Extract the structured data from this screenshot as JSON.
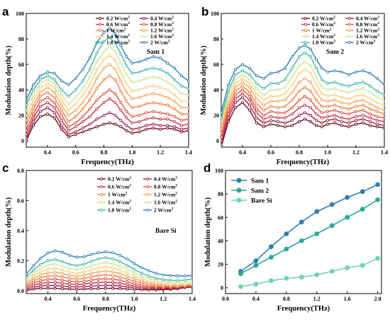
{
  "figure": {
    "panel_letters": [
      "a",
      "b",
      "c",
      "d"
    ],
    "intensity_legend": [
      {
        "label": "0.2 W/cm²",
        "color": "#6b0f1e"
      },
      {
        "label": "0.4 W/cm²",
        "color": "#a0204b"
      },
      {
        "label": "0.6 W/cm²",
        "color": "#c8324a"
      },
      {
        "label": "0.8 W/cm²",
        "color": "#e8513d"
      },
      {
        "label": "1    W/cm²",
        "color": "#f07f43"
      },
      {
        "label": "1.2 W/cm²",
        "color": "#f4a35e"
      },
      {
        "label": "1.4 W/cm²",
        "color": "#f6ce7a"
      },
      {
        "label": "1.6 W/cm²",
        "color": "#cfe39a"
      },
      {
        "label": "1.8 W/cm²",
        "color": "#3fb6a3"
      },
      {
        "label": "2    W/cm²",
        "color": "#2f7fb6"
      }
    ]
  },
  "chart_data": [
    {
      "panel": "a",
      "type": "line",
      "annotation": "Sam 1",
      "xlabel": "Frequency(THz)",
      "ylabel": "Modulation depth(%)",
      "xlim": [
        0.25,
        1.4
      ],
      "ylim": [
        -5,
        100
      ],
      "xticks": [
        "0.4",
        "0.6",
        "0.8",
        "1.0",
        "1.2",
        "1.4"
      ],
      "yticks": [
        "0",
        "20",
        "40",
        "60",
        "80",
        "100"
      ],
      "x": [
        0.25,
        0.3,
        0.35,
        0.4,
        0.45,
        0.5,
        0.55,
        0.6,
        0.65,
        0.7,
        0.75,
        0.8,
        0.84,
        0.88,
        0.92,
        0.96,
        1.0,
        1.05,
        1.1,
        1.15,
        1.2,
        1.25,
        1.3,
        1.35,
        1.4
      ],
      "series": [
        {
          "name": "0.2 W/cm²",
          "values": [
            0,
            12,
            19,
            21,
            18,
            9,
            3,
            5,
            7,
            9,
            11,
            13,
            14,
            13,
            11,
            8,
            6,
            7,
            9,
            10,
            9,
            10,
            9,
            7,
            8
          ]
        },
        {
          "name": "0.4 W/cm²",
          "values": [
            2,
            15,
            23,
            26,
            22,
            12,
            5,
            7,
            10,
            13,
            17,
            20,
            22,
            20,
            16,
            12,
            9,
            10,
            12,
            13,
            12,
            12,
            11,
            9,
            10
          ]
        },
        {
          "name": "0.6 W/cm²",
          "values": [
            5,
            18,
            27,
            30,
            26,
            16,
            8,
            11,
            15,
            19,
            25,
            30,
            33,
            30,
            24,
            18,
            14,
            15,
            17,
            18,
            17,
            17,
            15,
            12,
            13
          ]
        },
        {
          "name": "0.8 W/cm²",
          "values": [
            8,
            21,
            31,
            34,
            30,
            20,
            11,
            14,
            19,
            25,
            32,
            37,
            40,
            37,
            30,
            23,
            19,
            20,
            22,
            23,
            22,
            21,
            19,
            16,
            17
          ]
        },
        {
          "name": "1    W/cm²",
          "values": [
            12,
            25,
            35,
            38,
            34,
            24,
            15,
            19,
            25,
            32,
            41,
            48,
            51,
            48,
            39,
            31,
            26,
            27,
            29,
            30,
            29,
            28,
            25,
            21,
            21
          ]
        },
        {
          "name": "1.2 W/cm²",
          "values": [
            16,
            28,
            38,
            42,
            38,
            28,
            20,
            24,
            30,
            38,
            49,
            57,
            60,
            56,
            47,
            38,
            33,
            34,
            36,
            37,
            36,
            34,
            31,
            26,
            26
          ]
        },
        {
          "name": "1.4 W/cm²",
          "values": [
            20,
            32,
            42,
            45,
            42,
            32,
            24,
            29,
            36,
            44,
            56,
            64,
            67,
            63,
            54,
            45,
            39,
            40,
            42,
            43,
            42,
            40,
            36,
            31,
            31
          ]
        },
        {
          "name": "1.6 W/cm²",
          "values": [
            24,
            36,
            45,
            48,
            45,
            36,
            29,
            34,
            41,
            50,
            62,
            70,
            74,
            70,
            61,
            52,
            46,
            47,
            49,
            50,
            49,
            46,
            42,
            37,
            36
          ]
        },
        {
          "name": "1.8 W/cm²",
          "values": [
            28,
            40,
            48,
            51,
            48,
            40,
            35,
            40,
            47,
            56,
            69,
            78,
            81,
            77,
            68,
            59,
            53,
            54,
            56,
            57,
            56,
            53,
            48,
            43,
            41
          ]
        },
        {
          "name": "2    W/cm²",
          "values": [
            32,
            44,
            51,
            54,
            53,
            47,
            44,
            49,
            56,
            65,
            77,
            85,
            88,
            84,
            75,
            66,
            61,
            62,
            64,
            66,
            65,
            61,
            57,
            51,
            47
          ]
        }
      ]
    },
    {
      "panel": "b",
      "type": "line",
      "annotation": "Sam 2",
      "xlabel": "Frequency(THz)",
      "ylabel": "Modulation depth(%)",
      "xlim": [
        0.25,
        1.4
      ],
      "ylim": [
        -5,
        100
      ],
      "xticks": [
        "0.4",
        "0.6",
        "0.8",
        "1.0",
        "1.2",
        "1.4"
      ],
      "yticks": [
        "0",
        "20",
        "40",
        "60",
        "80",
        "100"
      ],
      "x": [
        0.25,
        0.3,
        0.35,
        0.4,
        0.45,
        0.5,
        0.55,
        0.6,
        0.65,
        0.7,
        0.75,
        0.8,
        0.84,
        0.88,
        0.92,
        0.96,
        1.0,
        1.05,
        1.1,
        1.15,
        1.2,
        1.25,
        1.3,
        1.35,
        1.4
      ],
      "series": [
        {
          "name": "0.2 W/cm²",
          "values": [
            -5,
            15,
            26,
            30,
            24,
            14,
            11,
            13,
            12,
            11,
            12,
            15,
            17,
            15,
            12,
            11,
            13,
            14,
            12,
            11,
            13,
            14,
            12,
            11,
            10
          ]
        },
        {
          "name": "0.4 W/cm²",
          "values": [
            -3,
            18,
            30,
            34,
            28,
            18,
            14,
            16,
            15,
            14,
            16,
            20,
            22,
            20,
            16,
            14,
            16,
            17,
            15,
            14,
            16,
            17,
            15,
            13,
            12
          ]
        },
        {
          "name": "0.6 W/cm²",
          "values": [
            0,
            21,
            33,
            37,
            32,
            22,
            17,
            19,
            18,
            18,
            21,
            26,
            28,
            26,
            21,
            18,
            19,
            20,
            18,
            17,
            19,
            20,
            18,
            16,
            15
          ]
        },
        {
          "name": "0.8 W/cm²",
          "values": [
            3,
            24,
            36,
            40,
            35,
            25,
            20,
            23,
            22,
            22,
            26,
            32,
            35,
            32,
            26,
            22,
            23,
            24,
            22,
            21,
            23,
            24,
            21,
            19,
            18
          ]
        },
        {
          "name": "1    W/cm²",
          "values": [
            6,
            27,
            39,
            43,
            38,
            29,
            24,
            27,
            26,
            27,
            32,
            39,
            42,
            39,
            32,
            27,
            27,
            28,
            26,
            25,
            27,
            28,
            25,
            23,
            21
          ]
        },
        {
          "name": "1.2 W/cm²",
          "values": [
            9,
            30,
            42,
            46,
            42,
            33,
            28,
            31,
            31,
            32,
            38,
            46,
            49,
            46,
            38,
            32,
            31,
            32,
            30,
            29,
            31,
            32,
            29,
            26,
            24
          ]
        },
        {
          "name": "1.4 W/cm²",
          "values": [
            12,
            33,
            45,
            49,
            45,
            37,
            32,
            35,
            35,
            37,
            44,
            53,
            56,
            53,
            44,
            37,
            35,
            36,
            34,
            33,
            35,
            36,
            33,
            30,
            28
          ]
        },
        {
          "name": "1.6 W/cm²",
          "values": [
            15,
            36,
            48,
            52,
            48,
            41,
            36,
            40,
            40,
            42,
            50,
            59,
            62,
            59,
            50,
            42,
            40,
            41,
            39,
            38,
            40,
            41,
            38,
            34,
            31
          ]
        },
        {
          "name": "1.8 W/cm²",
          "values": [
            18,
            39,
            52,
            55,
            52,
            45,
            41,
            45,
            45,
            48,
            57,
            66,
            69,
            66,
            57,
            48,
            45,
            46,
            44,
            43,
            45,
            46,
            43,
            39,
            36
          ]
        },
        {
          "name": "2    W/cm²",
          "values": [
            22,
            44,
            56,
            60,
            57,
            51,
            49,
            53,
            54,
            57,
            66,
            73,
            75,
            72,
            64,
            57,
            54,
            55,
            54,
            52,
            54,
            55,
            53,
            49,
            44
          ]
        }
      ]
    },
    {
      "panel": "c",
      "type": "line",
      "annotation": "Bare Si",
      "xlabel": "Frequency(THz)",
      "ylabel": "Modulation depth(%)",
      "xlim": [
        0.25,
        1.4
      ],
      "ylim": [
        -0.02,
        0.8
      ],
      "xticks": [
        "0.4",
        "0.6",
        "0.8",
        "1.0",
        "1.2",
        "1.4"
      ],
      "yticks": [
        "0.0",
        "0.2",
        "0.4",
        "0.6",
        "0.8"
      ],
      "x": [
        0.25,
        0.3,
        0.35,
        0.4,
        0.45,
        0.5,
        0.55,
        0.6,
        0.65,
        0.7,
        0.75,
        0.8,
        0.85,
        0.9,
        0.95,
        1.0,
        1.05,
        1.1,
        1.15,
        1.2,
        1.25,
        1.3,
        1.35,
        1.4
      ],
      "series": [
        {
          "name": "0.2 W/cm²",
          "values": [
            0.0,
            0.01,
            0.015,
            0.015,
            0.015,
            0.012,
            0.01,
            0.008,
            0.01,
            0.012,
            0.014,
            0.015,
            0.015,
            0.013,
            0.01,
            0.008,
            0.006,
            0.005,
            0.005,
            0.006,
            0.008,
            0.012,
            0.02,
            0.025
          ]
        },
        {
          "name": "0.4 W/cm²",
          "values": [
            0.01,
            0.022,
            0.03,
            0.034,
            0.034,
            0.03,
            0.026,
            0.024,
            0.026,
            0.03,
            0.033,
            0.035,
            0.034,
            0.03,
            0.025,
            0.02,
            0.016,
            0.013,
            0.012,
            0.012,
            0.014,
            0.018,
            0.024,
            0.028
          ]
        },
        {
          "name": "0.6 W/cm²",
          "values": [
            0.02,
            0.036,
            0.048,
            0.054,
            0.054,
            0.049,
            0.043,
            0.04,
            0.043,
            0.049,
            0.054,
            0.056,
            0.054,
            0.048,
            0.04,
            0.032,
            0.026,
            0.021,
            0.018,
            0.017,
            0.018,
            0.021,
            0.026,
            0.03
          ]
        },
        {
          "name": "0.8 W/cm²",
          "values": [
            0.03,
            0.05,
            0.066,
            0.075,
            0.076,
            0.069,
            0.061,
            0.057,
            0.061,
            0.069,
            0.076,
            0.079,
            0.076,
            0.068,
            0.057,
            0.046,
            0.037,
            0.03,
            0.025,
            0.022,
            0.022,
            0.024,
            0.028,
            0.032
          ]
        },
        {
          "name": "1    W/cm²",
          "values": [
            0.04,
            0.065,
            0.085,
            0.097,
            0.099,
            0.091,
            0.081,
            0.076,
            0.081,
            0.091,
            0.1,
            0.104,
            0.1,
            0.09,
            0.076,
            0.062,
            0.05,
            0.041,
            0.034,
            0.029,
            0.027,
            0.028,
            0.031,
            0.035
          ]
        },
        {
          "name": "1.2 W/cm²",
          "values": [
            0.05,
            0.08,
            0.104,
            0.12,
            0.123,
            0.114,
            0.102,
            0.096,
            0.102,
            0.114,
            0.125,
            0.13,
            0.125,
            0.113,
            0.096,
            0.079,
            0.064,
            0.052,
            0.043,
            0.037,
            0.034,
            0.034,
            0.036,
            0.04
          ]
        },
        {
          "name": "1.4 W/cm²",
          "values": [
            0.06,
            0.096,
            0.125,
            0.144,
            0.148,
            0.138,
            0.124,
            0.117,
            0.124,
            0.138,
            0.151,
            0.157,
            0.151,
            0.137,
            0.117,
            0.097,
            0.079,
            0.065,
            0.054,
            0.047,
            0.043,
            0.042,
            0.044,
            0.048
          ]
        },
        {
          "name": "1.6 W/cm²",
          "values": [
            0.075,
            0.115,
            0.148,
            0.17,
            0.175,
            0.164,
            0.148,
            0.14,
            0.148,
            0.164,
            0.179,
            0.186,
            0.179,
            0.163,
            0.14,
            0.117,
            0.096,
            0.08,
            0.067,
            0.059,
            0.054,
            0.053,
            0.055,
            0.06
          ]
        },
        {
          "name": "1.8 W/cm²",
          "values": [
            0.09,
            0.136,
            0.174,
            0.2,
            0.206,
            0.193,
            0.175,
            0.166,
            0.175,
            0.194,
            0.211,
            0.219,
            0.211,
            0.193,
            0.167,
            0.14,
            0.116,
            0.097,
            0.082,
            0.073,
            0.068,
            0.067,
            0.07,
            0.076
          ]
        },
        {
          "name": "2    W/cm²",
          "values": [
            0.11,
            0.165,
            0.215,
            0.25,
            0.265,
            0.255,
            0.235,
            0.222,
            0.225,
            0.24,
            0.252,
            0.258,
            0.252,
            0.235,
            0.21,
            0.18,
            0.153,
            0.132,
            0.115,
            0.105,
            0.1,
            0.098,
            0.098,
            0.1
          ]
        }
      ]
    },
    {
      "panel": "d",
      "type": "line",
      "xlabel": "Frequency(THz)",
      "ylabel": "Modulation depth(%)",
      "xlim": [
        0.0,
        2.05
      ],
      "ylim": [
        -5,
        100
      ],
      "xticks": [
        "0.0",
        "0.4",
        "0.8",
        "1.2",
        "1.6",
        "2.0"
      ],
      "yticks": [
        "0",
        "20",
        "40",
        "60",
        "80",
        "100"
      ],
      "x": [
        0.2,
        0.4,
        0.6,
        0.8,
        1.0,
        1.2,
        1.4,
        1.6,
        1.8,
        2.0
      ],
      "legend": "top-left",
      "series": [
        {
          "name": "Sam 1",
          "color": "#2f7fb6",
          "values": [
            14,
            23,
            35,
            46,
            56,
            65,
            71,
            77,
            82,
            88
          ]
        },
        {
          "name": "Sam 2",
          "color": "#2aa89a",
          "values": [
            12,
            19,
            26,
            33,
            40,
            46,
            53,
            60,
            67,
            75
          ]
        },
        {
          "name": "Bare Si",
          "color": "#6fd3b4",
          "values": [
            1,
            3,
            6,
            8,
            9,
            11,
            14,
            17,
            19,
            25
          ]
        }
      ]
    }
  ]
}
